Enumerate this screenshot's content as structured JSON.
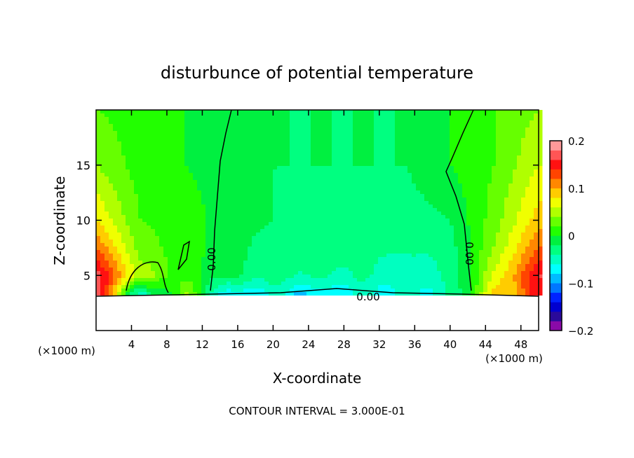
{
  "chart_data": {
    "type": "heatmap",
    "title": "disturbunce of potential temperature",
    "xlabel": "X-coordinate",
    "ylabel": "Z-coordinate",
    "x_unit_left": "(×1000 m)",
    "x_unit_right": "(×1000 m)",
    "footer": "CONTOUR INTERVAL = 3.000E-01",
    "xlim": [
      0,
      50
    ],
    "ylim": [
      0,
      20
    ],
    "xticks": [
      4,
      8,
      12,
      16,
      20,
      24,
      28,
      32,
      36,
      40,
      44,
      48
    ],
    "yticks": [
      5,
      10,
      15
    ],
    "contour_labels": [
      "0.00",
      "0.00",
      "0.00"
    ],
    "colorbar": {
      "range": [
        -0.2,
        0.2
      ],
      "tick_labels": [
        "0.2",
        "0.1",
        "0",
        "−0.1",
        "−0.2"
      ],
      "tick_values": [
        0.2,
        0.1,
        0,
        -0.1,
        -0.2
      ],
      "colors": [
        "#8a0aa8",
        "#2a0a9a",
        "#0000d0",
        "#0022ff",
        "#0077ff",
        "#00bbff",
        "#00ffff",
        "#00ffc0",
        "#00ff80",
        "#00f040",
        "#22ff00",
        "#66ff00",
        "#b0ff00",
        "#f0ff00",
        "#ffcc00",
        "#ff8800",
        "#ff4400",
        "#ff1111",
        "#ff5555",
        "#ff9999"
      ]
    },
    "grid_x": [
      0,
      5,
      10,
      15,
      20,
      25,
      30,
      35,
      40,
      45,
      50
    ],
    "grid_z": [
      3.3,
      5,
      7.5,
      10,
      15,
      20
    ],
    "values": [
      [
        0.18,
        -0.06,
        0.04,
        -0.08,
        -0.06,
        -0.08,
        -0.06,
        -0.06,
        -0.05,
        0.08,
        0.14
      ],
      [
        0.17,
        0.05,
        0.01,
        -0.02,
        -0.03,
        -0.04,
        -0.04,
        -0.05,
        -0.04,
        0.06,
        0.16
      ],
      [
        0.12,
        0.03,
        0.01,
        -0.01,
        -0.03,
        -0.03,
        -0.03,
        -0.04,
        -0.03,
        0.04,
        0.12
      ],
      [
        0.08,
        0.02,
        0.01,
        -0.01,
        -0.02,
        -0.03,
        -0.03,
        -0.03,
        -0.02,
        0.03,
        0.09
      ],
      [
        0.04,
        0.01,
        0.0,
        -0.01,
        -0.02,
        -0.02,
        -0.02,
        -0.02,
        0.0,
        0.02,
        0.06
      ],
      [
        0.02,
        0.01,
        0.0,
        -0.01,
        -0.02,
        -0.02,
        -0.02,
        -0.02,
        0.0,
        0.02,
        0.04
      ]
    ],
    "masked_below_z": 3.3
  }
}
